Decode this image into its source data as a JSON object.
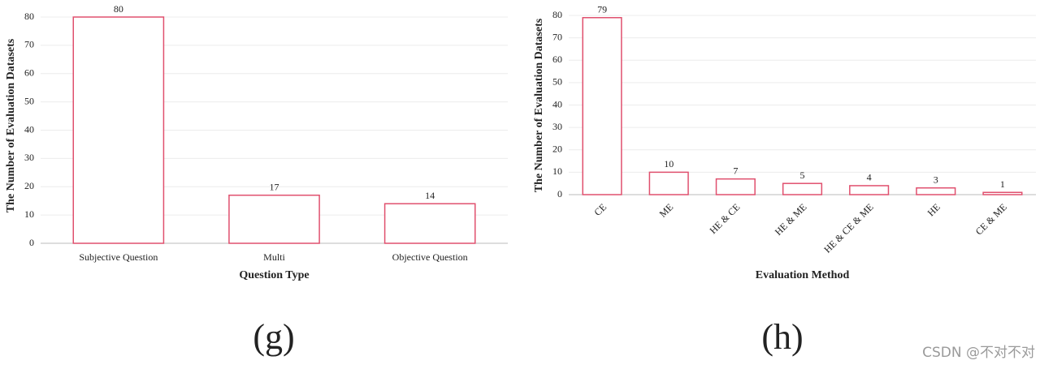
{
  "chart_data": [
    {
      "type": "bar",
      "caption": "(g)",
      "x_label": "Question Type",
      "y_label": "The Number of Evaluation Datasets",
      "categories": [
        "Subjective Question",
        "Multi",
        "Objective Question"
      ],
      "values": [
        80,
        17,
        14
      ],
      "color": "#e0506e",
      "ylim": [
        0,
        80
      ],
      "yticks": [
        0,
        10,
        20,
        30,
        40,
        50,
        60,
        70,
        80
      ],
      "grid": true,
      "rotate_labels": false
    },
    {
      "type": "bar",
      "caption": "(h)",
      "x_label": "Evaluation Method",
      "y_label": "The Number of Evaluation Datasets",
      "categories": [
        "CE",
        "ME",
        "HE & CE",
        "HE & ME",
        "HE & CE & ME",
        "HE",
        "CE & ME"
      ],
      "values": [
        79,
        10,
        7,
        5,
        4,
        3,
        1
      ],
      "color": "#e0506e",
      "ylim": [
        0,
        80
      ],
      "yticks": [
        0,
        10,
        20,
        30,
        40,
        50,
        60,
        70,
        80
      ],
      "grid": true,
      "rotate_labels": true
    }
  ],
  "watermark": "CSDN @不对不对"
}
